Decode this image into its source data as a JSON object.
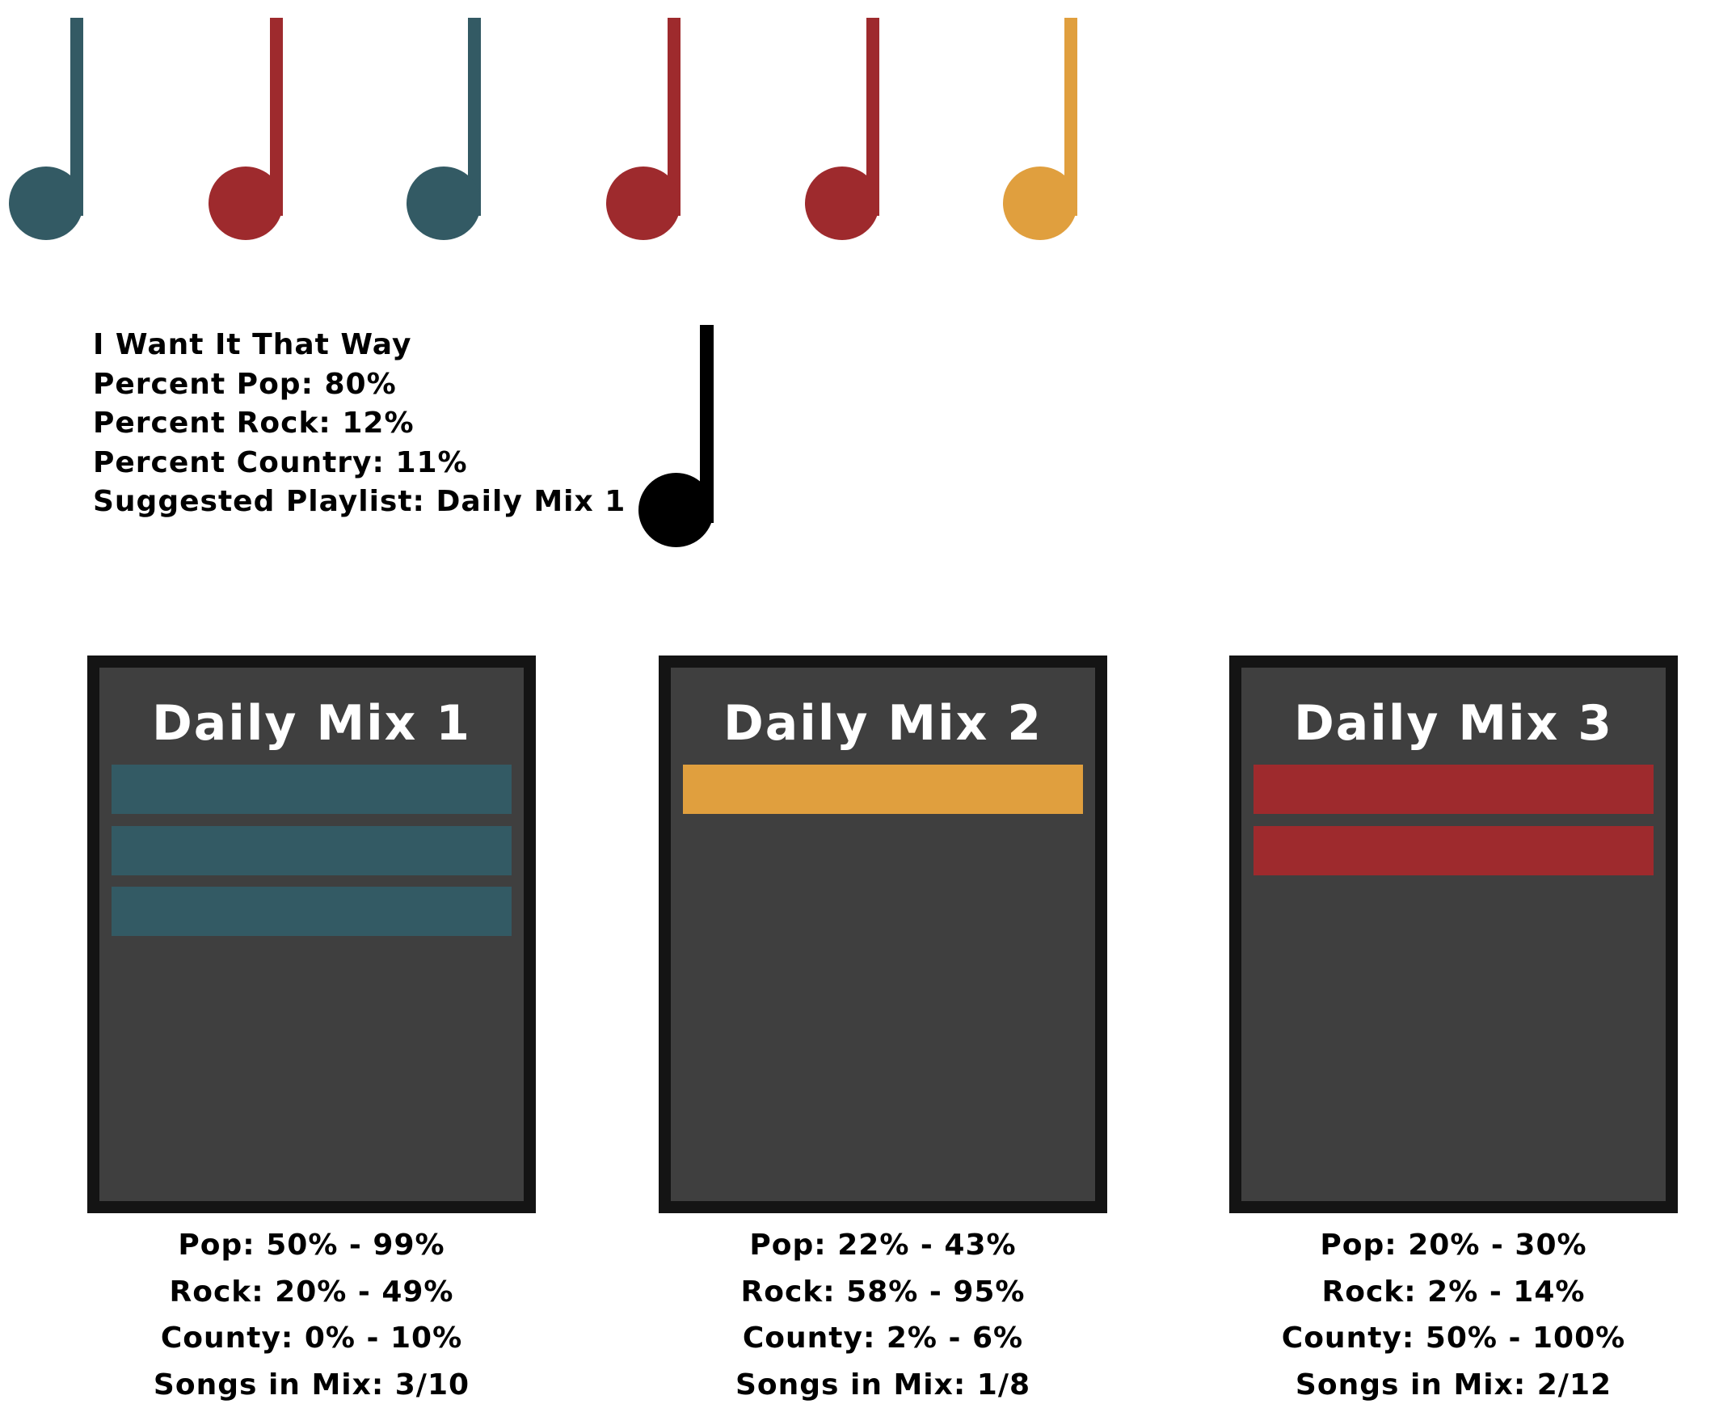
{
  "colors": {
    "teal": "#335a64",
    "red": "#9e2a2d",
    "gold": "#e09f3e",
    "black": "#000000",
    "frame": "#141414",
    "panel": "#3f3f3f"
  },
  "queue_notes": [
    {
      "name": "queue-note-1",
      "color": "#335a64",
      "genre": "pop"
    },
    {
      "name": "queue-note-2",
      "color": "#9e2a2d",
      "genre": "country"
    },
    {
      "name": "queue-note-3",
      "color": "#335a64",
      "genre": "pop"
    },
    {
      "name": "queue-note-4",
      "color": "#9e2a2d",
      "genre": "country"
    },
    {
      "name": "queue-note-5",
      "color": "#9e2a2d",
      "genre": "country"
    },
    {
      "name": "queue-note-6",
      "color": "#e09f3e",
      "genre": "rock"
    }
  ],
  "current_song": {
    "title": "I Want It That Way",
    "pop": "Percent Pop: 80%",
    "rock": "Percent Rock: 12%",
    "country": "Percent Country: 11%",
    "suggested": "Suggested Playlist: Daily Mix 1",
    "note_color": "#000000"
  },
  "playlists": [
    {
      "title": "Daily Mix 1",
      "color": "#335a64",
      "songs_filled": 3,
      "pop": "Pop: 50% - 99%",
      "rock": "Rock: 20% - 49%",
      "country": "County: 0% - 10%",
      "songs": "Songs in Mix: 3/10"
    },
    {
      "title": "Daily Mix 2",
      "color": "#e09f3e",
      "songs_filled": 1,
      "pop": "Pop: 22% - 43%",
      "rock": "Rock: 58% - 95%",
      "country": "County: 2% - 6%",
      "songs": "Songs in Mix: 1/8"
    },
    {
      "title": "Daily Mix 3",
      "color": "#9e2a2d",
      "songs_filled": 2,
      "pop": "Pop: 20% - 30%",
      "rock": "Rock: 2% - 14%",
      "country": "County: 50% - 100%",
      "songs": "Songs in Mix: 2/12"
    }
  ]
}
